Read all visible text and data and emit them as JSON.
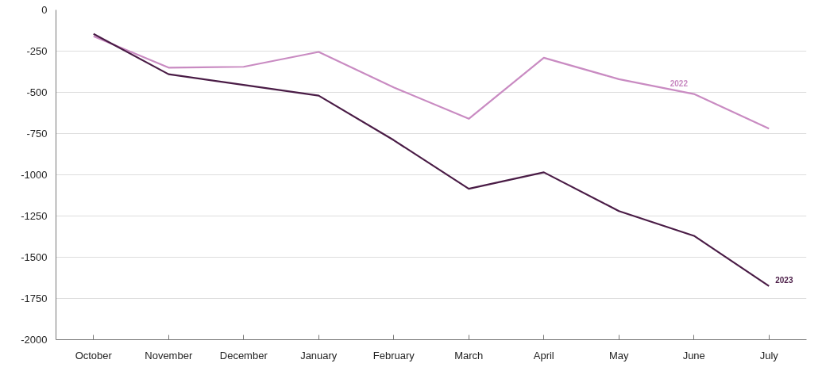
{
  "chart_data": {
    "type": "line",
    "categories": [
      "October",
      "November",
      "December",
      "January",
      "February",
      "March",
      "April",
      "May",
      "June",
      "July"
    ],
    "series": [
      {
        "name": "2022",
        "color": "#c98bc2",
        "values": [
          -160,
          -350,
          -345,
          -255,
          -470,
          -660,
          -290,
          -420,
          -510,
          -720
        ]
      },
      {
        "name": "2023",
        "color": "#4a1c46",
        "values": [
          -145,
          -390,
          -455,
          -520,
          -790,
          -1085,
          -985,
          -1220,
          -1370,
          -1675
        ]
      }
    ],
    "ylim": [
      -2000,
      0
    ],
    "yticks": [
      -2000,
      -1750,
      -1500,
      -1250,
      -1000,
      -750,
      -500,
      -250,
      0
    ],
    "grid": "y",
    "marker": "none",
    "line_style": "solid"
  }
}
